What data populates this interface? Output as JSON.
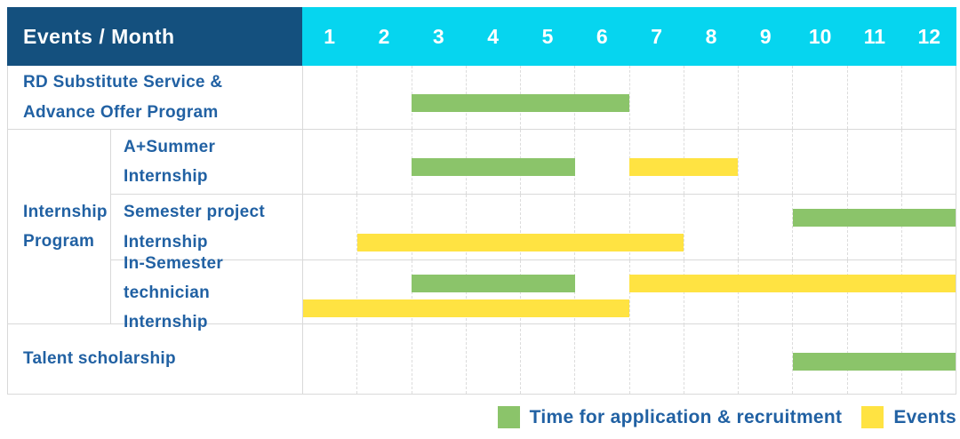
{
  "colors": {
    "header_bg": "#14507E",
    "month_header_bg": "#06D5EF",
    "header_text": "#FFFFFF",
    "label_text": "#2161A3",
    "application_green": "#8BC46A",
    "event_yellow": "#FFE342",
    "grid_line": "#DCDCDC",
    "row_border": "#D9D9D9"
  },
  "header": {
    "corner_label": "Events / Month"
  },
  "legend": {
    "items": [
      {
        "key": "application",
        "label": "Time for application & recruitment"
      },
      {
        "key": "event",
        "label": "Events"
      }
    ]
  },
  "chart_data": {
    "type": "gantt",
    "title": "Events / Month",
    "months": [
      "1",
      "2",
      "3",
      "4",
      "5",
      "6",
      "7",
      "8",
      "9",
      "10",
      "11",
      "12"
    ],
    "x_range": [
      1,
      12
    ],
    "bar_types": {
      "application": "Time for application & recruitment",
      "event": "Events"
    },
    "rows": [
      {
        "group": "",
        "label": "RD Substitute Service & Advance Offer Program",
        "bars": [
          {
            "type": "application",
            "start_month": 3,
            "end_month": 6,
            "line": 0
          }
        ]
      },
      {
        "group": "Internship Program",
        "label": "A+Summer Internship",
        "bars": [
          {
            "type": "application",
            "start_month": 3,
            "end_month": 5,
            "line": 0
          },
          {
            "type": "event",
            "start_month": 7,
            "end_month": 8,
            "line": 0
          }
        ]
      },
      {
        "group": "Internship Program",
        "label": "Semester project Internship",
        "bars": [
          {
            "type": "application",
            "start_month": 10,
            "end_month": 12,
            "line": 0
          },
          {
            "type": "event",
            "start_month": 2,
            "end_month": 7,
            "line": 1
          }
        ]
      },
      {
        "group": "Internship Program",
        "label": "In-Semester technician Internship",
        "bars": [
          {
            "type": "application",
            "start_month": 3,
            "end_month": 5,
            "line": 0
          },
          {
            "type": "event",
            "start_month": 7,
            "end_month": 12,
            "line": 0
          },
          {
            "type": "event",
            "start_month": 1,
            "end_month": 6,
            "line": 1
          }
        ]
      },
      {
        "group": "",
        "label": "Talent scholarship",
        "bars": [
          {
            "type": "application",
            "start_month": 10,
            "end_month": 12,
            "line": 0
          }
        ]
      }
    ],
    "legend_position": "bottom-right",
    "grid": "vertical-dashed"
  }
}
